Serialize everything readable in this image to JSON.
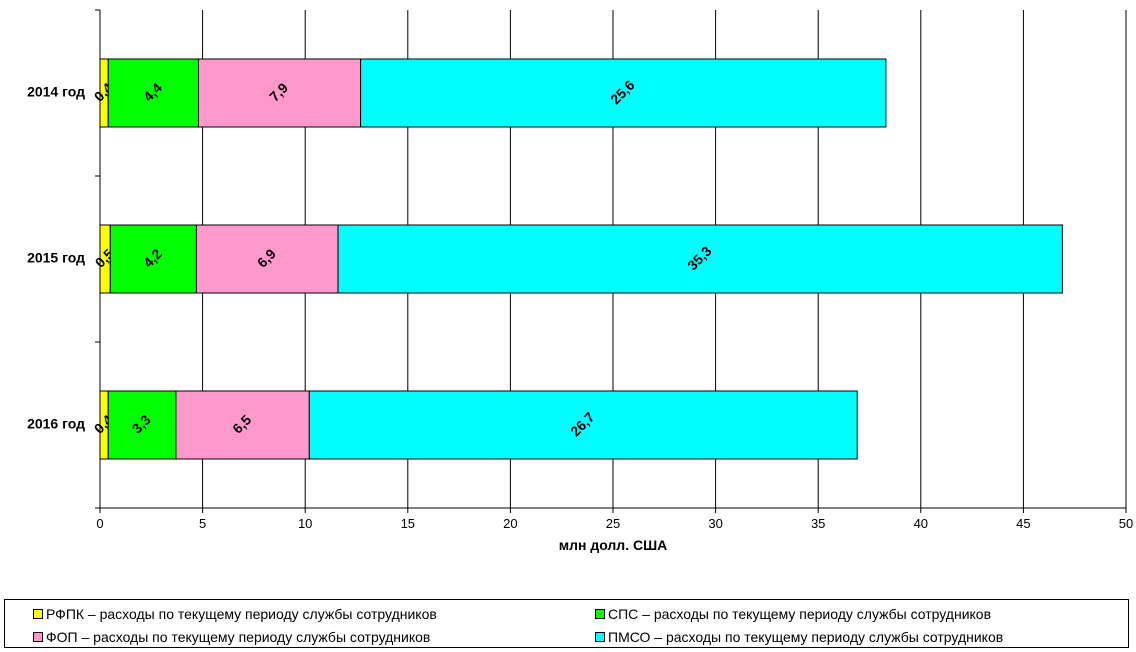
{
  "chart_data": {
    "type": "bar",
    "orientation": "horizontal",
    "stacked": true,
    "categories": [
      "2014 год",
      "2015 год",
      "2016 год"
    ],
    "series": [
      {
        "name": "РФПК – расходы по текущему периоду службы сотрудников",
        "color": "#ffff00",
        "values": [
          0.4,
          0.5,
          0.4
        ],
        "labels": [
          "0,4",
          "0,5",
          "0,4"
        ]
      },
      {
        "name": "СПС – расходы по текущему периоду службы сотрудников",
        "color": "#00ff00",
        "values": [
          4.4,
          4.2,
          3.3
        ],
        "labels": [
          "4,4",
          "4,2",
          "3,3"
        ]
      },
      {
        "name": "ФОП – расходы по текущему периоду службы сотрудников",
        "color": "#ff99cc",
        "values": [
          7.9,
          6.9,
          6.5
        ],
        "labels": [
          "7,9",
          "6,9",
          "6,5"
        ]
      },
      {
        "name": "ПМСО – расходы по текущему периоду службы сотрудников",
        "color": "#00ffff",
        "values": [
          25.6,
          35.3,
          26.7
        ],
        "labels": [
          "25,6",
          "35,3",
          "26,7"
        ]
      }
    ],
    "xlabel": "млн долл. США",
    "ylabel": "",
    "xlim": [
      0,
      50
    ],
    "xticks": [
      0,
      5,
      10,
      15,
      20,
      25,
      30,
      35,
      40,
      45,
      50
    ],
    "grid": "vertical",
    "legend_position": "bottom"
  }
}
